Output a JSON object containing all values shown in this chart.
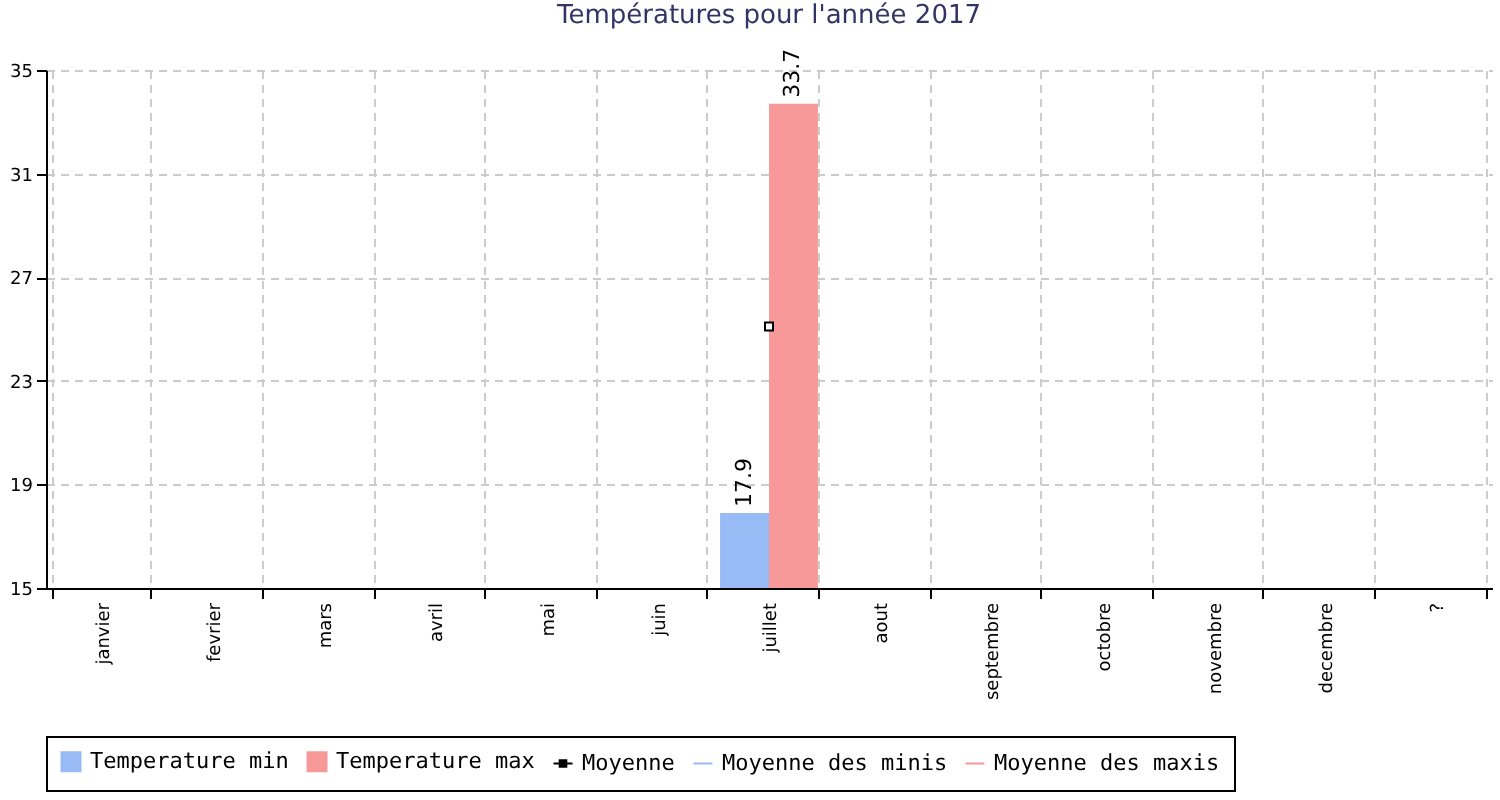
{
  "chart_data": {
    "type": "bar",
    "title": "Températures pour l'année 2017",
    "categories": [
      "janvier",
      "fevrier",
      "mars",
      "avril",
      "mai",
      "juin",
      "juillet",
      "aout",
      "septembre",
      "octobre",
      "novembre",
      "decembre",
      "?"
    ],
    "series": [
      {
        "name": "Temperature min",
        "color": "#99bbf5",
        "values": [
          null,
          null,
          null,
          null,
          null,
          null,
          17.9,
          null,
          null,
          null,
          null,
          null,
          null
        ],
        "value_labels": [
          null,
          null,
          null,
          null,
          null,
          null,
          "17.9",
          null,
          null,
          null,
          null,
          null,
          null
        ]
      },
      {
        "name": "Temperature max",
        "color": "#f79999",
        "values": [
          null,
          null,
          null,
          null,
          null,
          null,
          33.7,
          null,
          null,
          null,
          null,
          null,
          null
        ],
        "value_labels": [
          null,
          null,
          null,
          null,
          null,
          null,
          "33.7",
          null,
          null,
          null,
          null,
          null,
          null
        ]
      },
      {
        "name": "Moyenne",
        "type": "line",
        "color": "#000000",
        "marker": "square",
        "values": [
          null,
          null,
          null,
          null,
          null,
          null,
          25.1,
          null,
          null,
          null,
          null,
          null,
          null
        ]
      },
      {
        "name": "Moyenne des minis",
        "type": "line",
        "color": "#99bbf5",
        "marker": "none",
        "values": [
          null,
          null,
          null,
          null,
          null,
          null,
          null,
          null,
          null,
          null,
          null,
          null,
          null
        ]
      },
      {
        "name": "Moyenne des maxis",
        "type": "line",
        "color": "#f79999",
        "marker": "none",
        "values": [
          null,
          null,
          null,
          null,
          null,
          null,
          null,
          null,
          null,
          null,
          null,
          null,
          null
        ]
      }
    ],
    "ylim": [
      15,
      35
    ],
    "yticks": [
      15,
      19,
      23,
      27,
      31,
      35
    ],
    "grid": true,
    "legend": "bottom"
  }
}
